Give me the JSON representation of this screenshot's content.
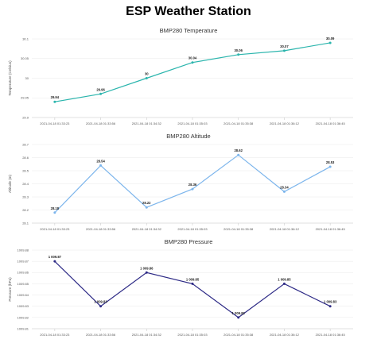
{
  "page": {
    "title": "ESP Weather Station"
  },
  "chart_data": [
    {
      "type": "line",
      "title": "BMP280 Temperature",
      "ylabel": "Temperature (Celsius)",
      "xlabel": "",
      "color": "#2bb5ad",
      "x": [
        "2021-04-18 01:33:23",
        "2021-04-18 01:33:56",
        "2021-04-18 01:34:32",
        "2021-04-18 01:35:03",
        "2021-04-18 01:35:38",
        "2021-04-18 01:36:12",
        "2021-04-18 01:36:45"
      ],
      "values": [
        29.94,
        29.96,
        30,
        30.04,
        30.06,
        30.07,
        30.09
      ],
      "yticks": [
        29.9,
        29.95,
        30,
        30.05,
        30.1
      ],
      "ytick_labels": [
        "29.9",
        "29.95",
        "30",
        "30.05",
        "30.1"
      ],
      "ylim": [
        29.9,
        30.1
      ],
      "data_labels": [
        "29.94",
        "29.96",
        "30",
        "30.04",
        "30.06",
        "30.07",
        "30.09"
      ],
      "grid": true
    },
    {
      "type": "line",
      "title": "BMP280 Altitude",
      "ylabel": "Altitude (m)",
      "xlabel": "",
      "color": "#7cb5ec",
      "x": [
        "2021-04-18 01:33:23",
        "2021-04-18 01:33:56",
        "2021-04-18 01:34:32",
        "2021-04-18 01:35:03",
        "2021-04-18 01:35:38",
        "2021-04-18 01:36:12",
        "2021-04-18 01:36:45"
      ],
      "values": [
        28.18,
        28.54,
        28.22,
        28.36,
        28.62,
        28.34,
        28.53
      ],
      "yticks": [
        28.1,
        28.2,
        28.3,
        28.4,
        28.5,
        28.6,
        28.7
      ],
      "ytick_labels": [
        "28.1",
        "28.2",
        "28.3",
        "28.4",
        "28.5",
        "28.6",
        "28.7"
      ],
      "ylim": [
        28.1,
        28.7
      ],
      "data_labels": [
        "28.18",
        "28.54",
        "28.22",
        "28.36",
        "28.62",
        "28.34",
        "28.53"
      ],
      "grid": true
    },
    {
      "type": "line",
      "title": "BMP280 Pressure",
      "ylabel": "Pressure (hPa)",
      "xlabel": "",
      "color": "#2d2a86",
      "x": [
        "2021-04-18 01:33:23",
        "2021-04-18 01:33:56",
        "2021-04-18 01:34:32",
        "2021-04-18 01:35:03",
        "2021-04-18 01:35:38",
        "2021-04-18 01:36:12",
        "2021-04-18 01:36:45"
      ],
      "values": [
        1009.87,
        1009.83,
        1009.86,
        1009.85,
        1009.82,
        1009.85,
        1009.83
      ],
      "yticks": [
        1009.81,
        1009.82,
        1009.83,
        1009.84,
        1009.85,
        1009.86,
        1009.87,
        1009.88
      ],
      "ytick_labels": [
        "1009.81",
        "1009.82",
        "1009.83",
        "1009.84",
        "1009.85",
        "1009.86",
        "1009.87",
        "1009.88"
      ],
      "ylim": [
        1009.81,
        1009.88
      ],
      "data_labels": [
        "1 009.87",
        "1 009.83",
        "1 009.86",
        "1 009.85",
        "1 009.82",
        "1 009.85",
        "1 009.83"
      ],
      "grid": true
    }
  ]
}
